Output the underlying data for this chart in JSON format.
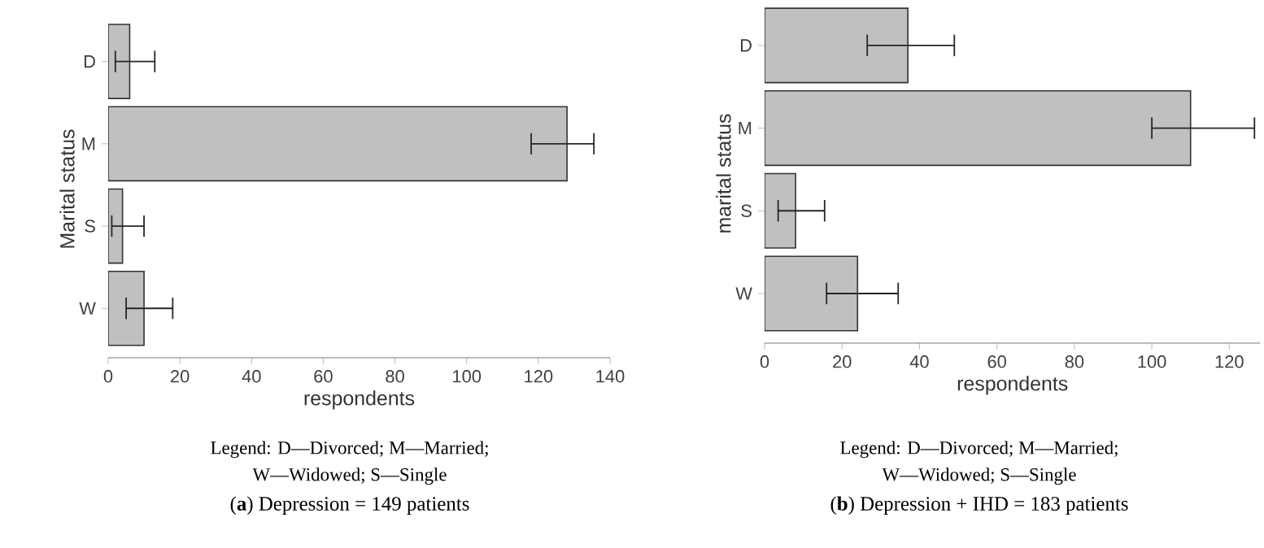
{
  "chart_data": [
    {
      "type": "bar",
      "orientation": "horizontal",
      "title": "(**a**) Depression = 149 patients",
      "xlabel": "respondents",
      "ylabel": "Marital status",
      "categories": [
        "D",
        "M",
        "S",
        "W"
      ],
      "values": [
        6,
        128,
        4,
        10
      ],
      "errors": [
        [
          2,
          13
        ],
        [
          118,
          135.5
        ],
        [
          1,
          10
        ],
        [
          5,
          18
        ]
      ],
      "color": "#c0c0c0",
      "xlim": [
        0,
        140
      ],
      "xticks": [
        0,
        20,
        40,
        60,
        80,
        100,
        120,
        140
      ],
      "annotations": [
        "Legend: D—Divorced; M—Married; W—Widowed; S—Single"
      ]
    },
    {
      "type": "bar",
      "orientation": "horizontal",
      "title": "(**b**) Depression + IHD = 183 patients",
      "xlabel": "respondents",
      "ylabel": "marital status",
      "categories": [
        "D",
        "M",
        "S",
        "W"
      ],
      "values": [
        37,
        110,
        8,
        24
      ],
      "errors": [
        [
          26.5,
          49
        ],
        [
          100,
          126.5
        ],
        [
          3.5,
          15.5
        ],
        [
          16,
          34.5
        ]
      ],
      "color": "#c0c0c0",
      "xlim": [
        0,
        128
      ],
      "xticks": [
        0,
        20,
        40,
        60,
        80,
        100,
        120
      ],
      "annotations": [
        "Legend: D—Divorced; M—Married; W—Widowed; S—Single"
      ]
    }
  ]
}
